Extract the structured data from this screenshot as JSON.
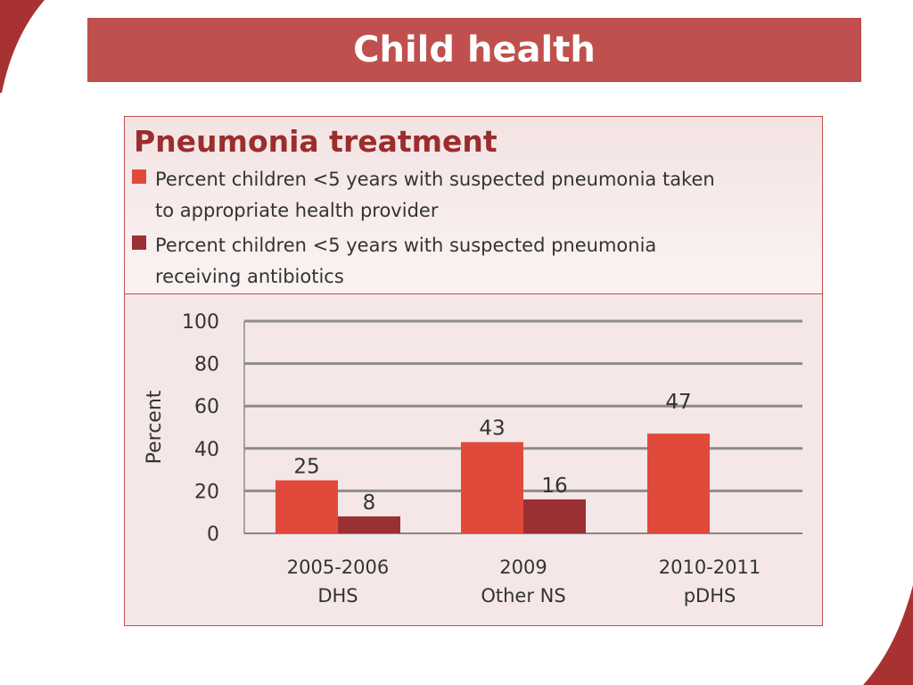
{
  "slide": {
    "title": "Child health"
  },
  "colors": {
    "banner": "#c0504d",
    "series_1": "#e14a3b",
    "series_2": "#9b3034",
    "panel_title": "#9b2d2d",
    "gridline": "#8c8c8c"
  },
  "chart_data": {
    "type": "bar",
    "title": "Pneumonia treatment",
    "ylabel": "Percent",
    "xlabel": "",
    "ylim": [
      0,
      100
    ],
    "yticks": [
      "0",
      "20",
      "40",
      "60",
      "80",
      "100"
    ],
    "grid": true,
    "legend_position": "top",
    "categories": [
      [
        "2005-2006",
        "DHS"
      ],
      [
        "2009",
        "Other NS"
      ],
      [
        "2010-2011",
        "pDHS"
      ]
    ],
    "series": [
      {
        "name": "Percent children <5 years with suspected pneumonia taken to appropriate health provider",
        "legend_lines": [
          "Percent children <5 years with suspected pneumonia taken",
          "to appropriate health provider"
        ],
        "values": [
          25,
          43,
          47
        ]
      },
      {
        "name": "Percent children <5 years with suspected pneumonia receiving antibiotics",
        "legend_lines": [
          "Percent children <5 years with suspected pneumonia",
          "receiving antibiotics"
        ],
        "values": [
          8,
          16,
          null
        ]
      }
    ]
  }
}
